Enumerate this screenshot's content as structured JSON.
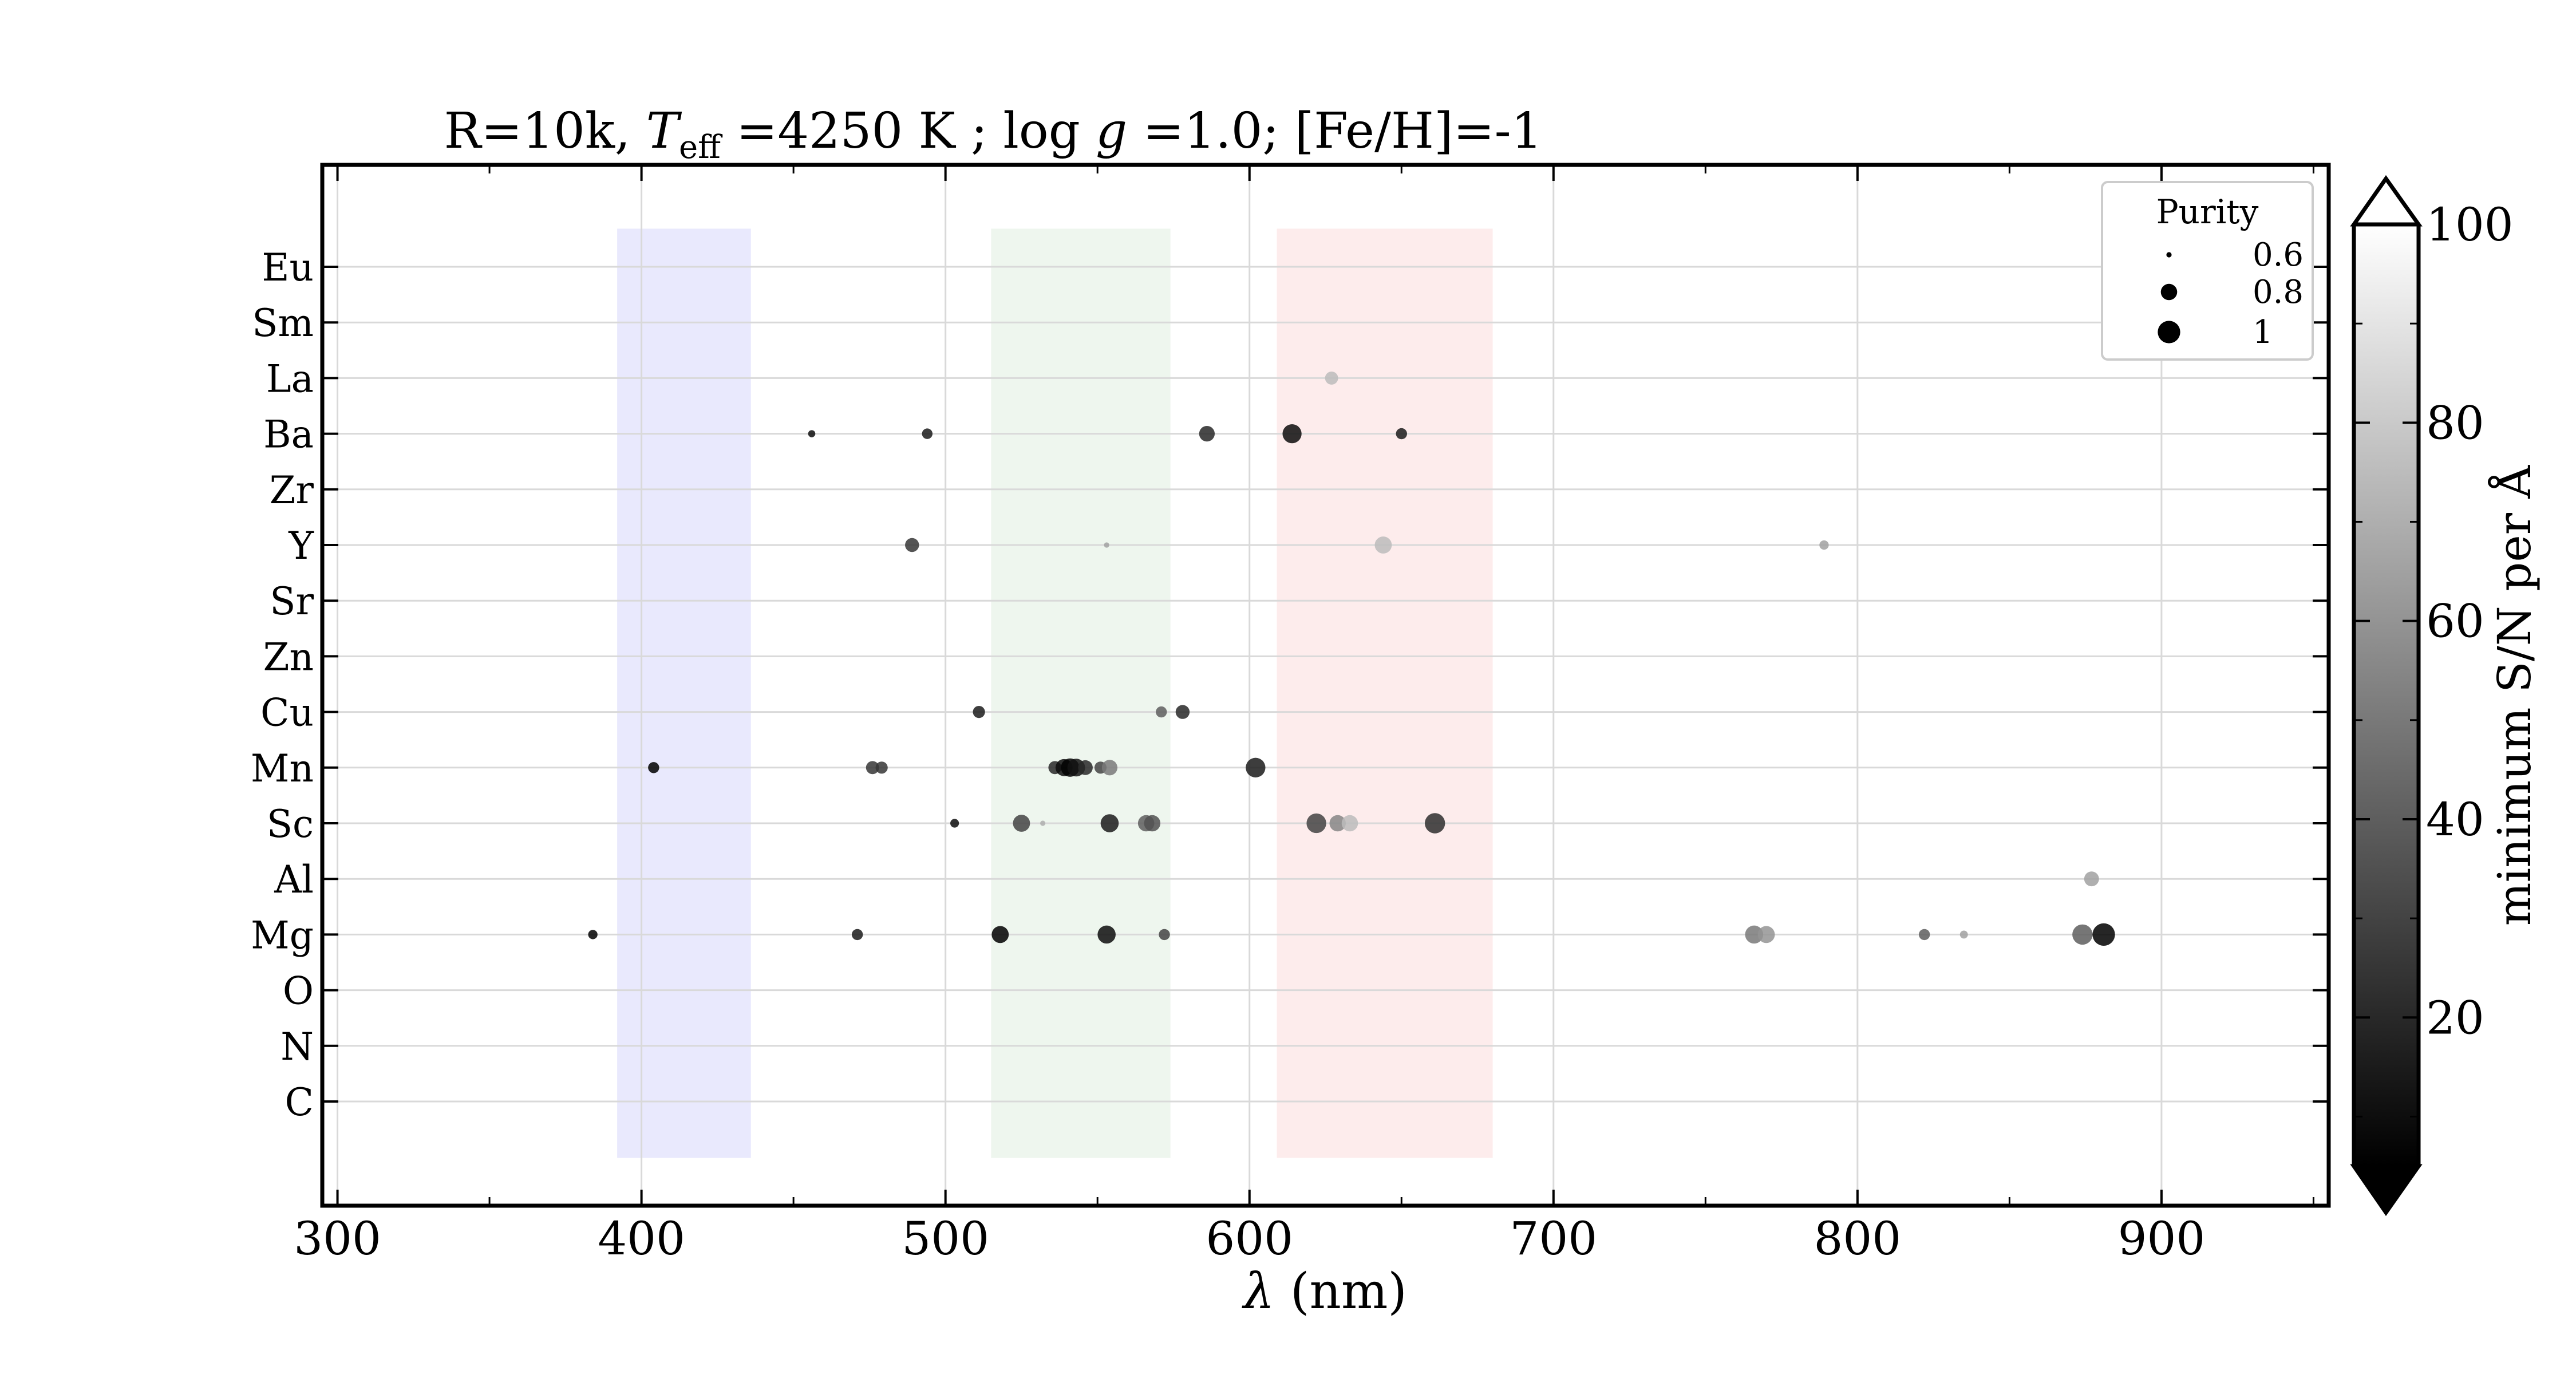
{
  "chart_data": {
    "type": "scatter",
    "title": "R=10k, T_eff =4250 K ; log g =1.0; [Fe/H]=-1",
    "title_parts": {
      "prefix": "R=10k, ",
      "t_symbol": "T",
      "t_subscript": "eff",
      "t_value": " =4250 K ; log ",
      "g_symbol": "g",
      "suffix": " =1.0; [Fe/H]=-1"
    },
    "xlabel": "λ (nm)",
    "xlabel_parts": {
      "symbol": "λ",
      "unit": " (nm)"
    },
    "xlim": [
      295,
      955
    ],
    "xticks": [
      300,
      400,
      500,
      600,
      700,
      800,
      900
    ],
    "elements": [
      "C",
      "N",
      "O",
      "Mg",
      "Al",
      "Sc",
      "Mn",
      "Cu",
      "Zn",
      "Sr",
      "Y",
      "Zr",
      "Ba",
      "La",
      "Sm",
      "Eu"
    ],
    "grid": true,
    "bands": [
      {
        "name": "blue",
        "x0": 392,
        "x1": 436,
        "color": "#e9e9fd"
      },
      {
        "name": "green",
        "x0": 515,
        "x1": 574,
        "color": "#eef6ee"
      },
      {
        "name": "red",
        "x0": 609,
        "x1": 680,
        "color": "#fdecec"
      }
    ],
    "legend": {
      "title": "Purity",
      "placement": "top-right",
      "entries": [
        {
          "label": "0.6",
          "purity": 0.6
        },
        {
          "label": "0.8",
          "purity": 0.8
        },
        {
          "label": "1",
          "purity": 1.0
        }
      ]
    },
    "colorbar": {
      "label": "minimum S/N per Å",
      "min": 5,
      "max": 100,
      "ticks": [
        20,
        40,
        60,
        80,
        100
      ],
      "extend": "both",
      "colormap": "greys_reversed"
    },
    "points": [
      {
        "element": "Mg",
        "x": 384,
        "purity": 0.65,
        "snr": 5
      },
      {
        "element": "Mg",
        "x": 471,
        "purity": 0.68,
        "snr": 15
      },
      {
        "element": "Mg",
        "x": 518,
        "purity": 0.82,
        "snr": 5
      },
      {
        "element": "Mg",
        "x": 553,
        "purity": 0.85,
        "snr": 10
      },
      {
        "element": "Mg",
        "x": 572,
        "purity": 0.68,
        "snr": 30
      },
      {
        "element": "Mg",
        "x": 766,
        "purity": 0.85,
        "snr": 50
      },
      {
        "element": "Mg",
        "x": 770,
        "purity": 0.82,
        "snr": 60
      },
      {
        "element": "Mg",
        "x": 822,
        "purity": 0.68,
        "snr": 40
      },
      {
        "element": "Mg",
        "x": 835,
        "purity": 0.63,
        "snr": 65
      },
      {
        "element": "Mg",
        "x": 874,
        "purity": 0.92,
        "snr": 40
      },
      {
        "element": "Mg",
        "x": 881,
        "purity": 1.0,
        "snr": 5
      },
      {
        "element": "Al",
        "x": 877,
        "purity": 0.76,
        "snr": 65
      },
      {
        "element": "Sc",
        "x": 503,
        "purity": 0.64,
        "snr": 10
      },
      {
        "element": "Sc",
        "x": 525,
        "purity": 0.82,
        "snr": 30
      },
      {
        "element": "Sc",
        "x": 532,
        "purity": 0.6,
        "snr": 70
      },
      {
        "element": "Sc",
        "x": 554,
        "purity": 0.85,
        "snr": 15
      },
      {
        "element": "Sc",
        "x": 566,
        "purity": 0.8,
        "snr": 40
      },
      {
        "element": "Sc",
        "x": 568,
        "purity": 0.8,
        "snr": 35
      },
      {
        "element": "Sc",
        "x": 622,
        "purity": 0.9,
        "snr": 30
      },
      {
        "element": "Sc",
        "x": 629,
        "purity": 0.8,
        "snr": 55
      },
      {
        "element": "Sc",
        "x": 633,
        "purity": 0.8,
        "snr": 75
      },
      {
        "element": "Sc",
        "x": 661,
        "purity": 0.92,
        "snr": 22
      },
      {
        "element": "Mn",
        "x": 404,
        "purity": 0.68,
        "snr": 5
      },
      {
        "element": "Mn",
        "x": 476,
        "purity": 0.72,
        "snr": 25
      },
      {
        "element": "Mn",
        "x": 479,
        "purity": 0.7,
        "snr": 25
      },
      {
        "element": "Mn",
        "x": 536,
        "purity": 0.72,
        "snr": 20
      },
      {
        "element": "Mn",
        "x": 539,
        "purity": 0.82,
        "snr": 10
      },
      {
        "element": "Mn",
        "x": 541,
        "purity": 0.86,
        "snr": 5
      },
      {
        "element": "Mn",
        "x": 543,
        "purity": 0.84,
        "snr": 12
      },
      {
        "element": "Mn",
        "x": 546,
        "purity": 0.76,
        "snr": 20
      },
      {
        "element": "Mn",
        "x": 551,
        "purity": 0.7,
        "snr": 30
      },
      {
        "element": "Mn",
        "x": 554,
        "purity": 0.78,
        "snr": 50
      },
      {
        "element": "Mn",
        "x": 602,
        "purity": 0.9,
        "snr": 15
      },
      {
        "element": "Cu",
        "x": 511,
        "purity": 0.7,
        "snr": 15
      },
      {
        "element": "Cu",
        "x": 571,
        "purity": 0.68,
        "snr": 40
      },
      {
        "element": "Cu",
        "x": 578,
        "purity": 0.74,
        "snr": 20
      },
      {
        "element": "Y",
        "x": 489,
        "purity": 0.74,
        "snr": 25
      },
      {
        "element": "Y",
        "x": 553,
        "purity": 0.6,
        "snr": 65
      },
      {
        "element": "Y",
        "x": 644,
        "purity": 0.82,
        "snr": 75
      },
      {
        "element": "Y",
        "x": 789,
        "purity": 0.65,
        "snr": 65
      },
      {
        "element": "Ba",
        "x": 456,
        "purity": 0.62,
        "snr": 10
      },
      {
        "element": "Ba",
        "x": 494,
        "purity": 0.67,
        "snr": 15
      },
      {
        "element": "Ba",
        "x": 586,
        "purity": 0.78,
        "snr": 20
      },
      {
        "element": "Ba",
        "x": 614,
        "purity": 0.88,
        "snr": 10
      },
      {
        "element": "Ba",
        "x": 650,
        "purity": 0.68,
        "snr": 15
      },
      {
        "element": "La",
        "x": 627,
        "purity": 0.72,
        "snr": 75
      }
    ]
  }
}
